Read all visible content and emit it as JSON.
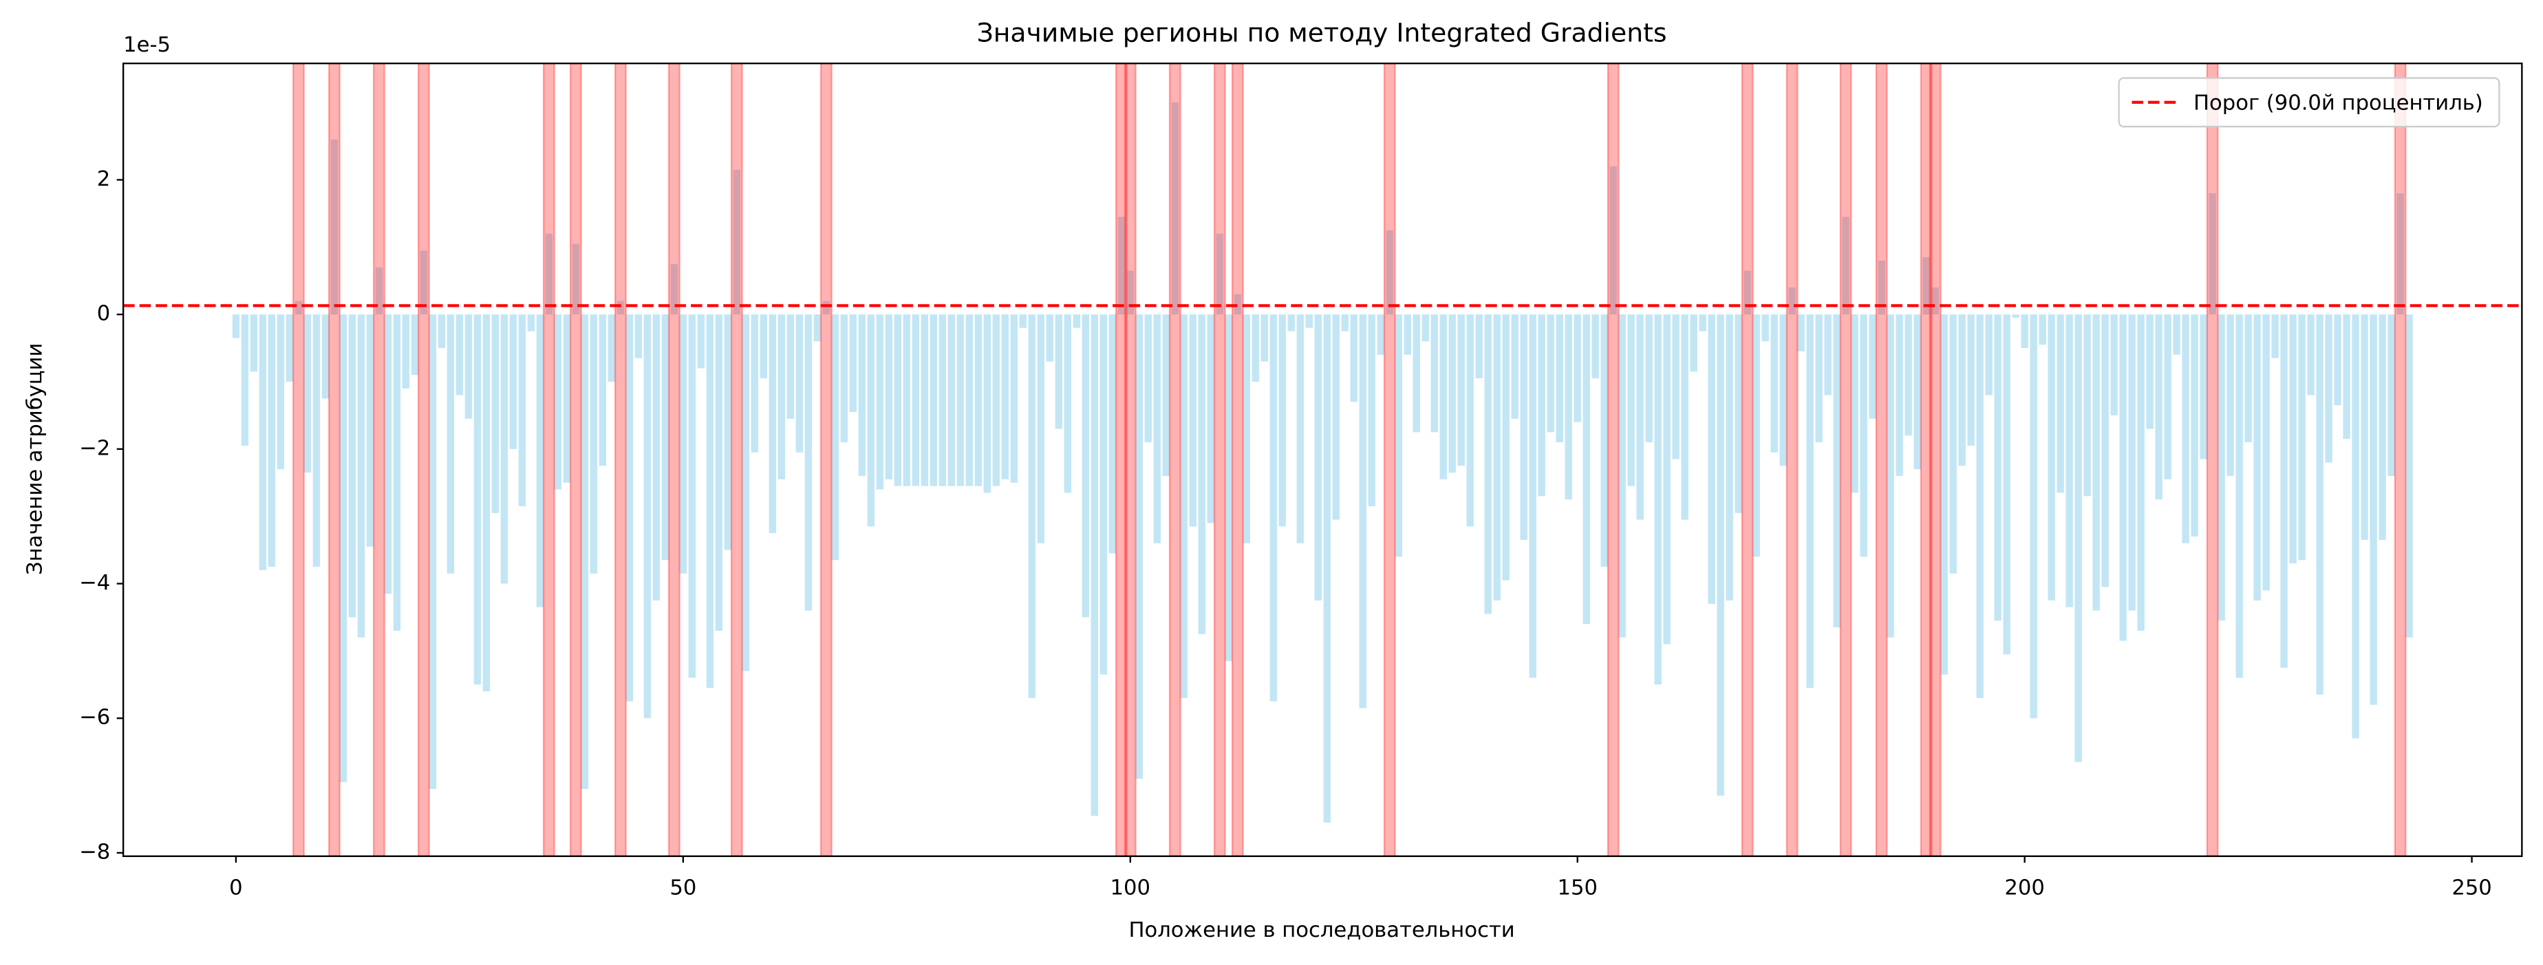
{
  "chart_data": {
    "type": "bar",
    "title": "Значимые регионы по методу Integrated Gradients",
    "xlabel": "Положение в последовательности",
    "ylabel": "Значение атрибуции",
    "y_offset_label": "1e-5",
    "color": "#87ceeb",
    "x": [
      0,
      1,
      2,
      3,
      4,
      5,
      6,
      7,
      8,
      9,
      10,
      11,
      12,
      13,
      14,
      15,
      16,
      17,
      18,
      19,
      20,
      21,
      22,
      23,
      24,
      25,
      26,
      27,
      28,
      29,
      30,
      31,
      32,
      33,
      34,
      35,
      36,
      37,
      38,
      39,
      40,
      41,
      42,
      43,
      44,
      45,
      46,
      47,
      48,
      49,
      50,
      51,
      52,
      53,
      54,
      55,
      56,
      57,
      58,
      59,
      60,
      61,
      62,
      63,
      64,
      65,
      66,
      67,
      68,
      69,
      70,
      71,
      72,
      73,
      74,
      75,
      76,
      77,
      78,
      79,
      80,
      81,
      82,
      83,
      84,
      85,
      86,
      87,
      88,
      89,
      90,
      91,
      92,
      93,
      94,
      95,
      96,
      97,
      98,
      99,
      100,
      101,
      102,
      103,
      104,
      105,
      106,
      107,
      108,
      109,
      110,
      111,
      112,
      113,
      114,
      115,
      116,
      117,
      118,
      119,
      120,
      121,
      122,
      123,
      124,
      125,
      126,
      127,
      128,
      129,
      130,
      131,
      132,
      133,
      134,
      135,
      136,
      137,
      138,
      139,
      140,
      141,
      142,
      143,
      144,
      145,
      146,
      147,
      148,
      149,
      150,
      151,
      152,
      153,
      154,
      155,
      156,
      157,
      158,
      159,
      160,
      161,
      162,
      163,
      164,
      165,
      166,
      167,
      168,
      169,
      170,
      171,
      172,
      173,
      174,
      175,
      176,
      177,
      178,
      179,
      180,
      181,
      182,
      183,
      184,
      185,
      186,
      187,
      188,
      189,
      190,
      191,
      192,
      193,
      194,
      195,
      196,
      197,
      198,
      199,
      200,
      201,
      202,
      203,
      204,
      205,
      206,
      207,
      208,
      209,
      210,
      211,
      212,
      213,
      214,
      215,
      216,
      217,
      218,
      219,
      220,
      221,
      222,
      223,
      224,
      225,
      226,
      227,
      228,
      229,
      230,
      231,
      232,
      233,
      234,
      235,
      236,
      237,
      238,
      239,
      240,
      241,
      242,
      243
    ],
    "values": [
      -0.35,
      -1.95,
      -0.85,
      -3.8,
      -3.75,
      -2.3,
      -1.0,
      0.2,
      -2.35,
      -3.75,
      -1.25,
      2.6,
      -6.95,
      -4.5,
      -4.8,
      -3.45,
      0.7,
      -4.15,
      -4.7,
      -1.1,
      -0.9,
      0.95,
      -7.05,
      -0.5,
      -3.85,
      -1.2,
      -1.55,
      -5.5,
      -5.6,
      -2.95,
      -4.0,
      -2.0,
      -2.85,
      -0.25,
      -4.35,
      1.2,
      -2.6,
      -2.5,
      1.05,
      -7.05,
      -3.85,
      -2.25,
      -1.0,
      0.2,
      -5.75,
      -0.65,
      -6.0,
      -4.25,
      -3.65,
      0.75,
      -3.85,
      -5.4,
      -0.8,
      -5.55,
      -4.7,
      -3.5,
      2.15,
      -5.3,
      -2.05,
      -0.95,
      -3.25,
      -2.45,
      -1.55,
      -2.05,
      -4.4,
      -0.4,
      0.2,
      -3.65,
      -1.9,
      -1.45,
      -2.4,
      -3.15,
      -2.6,
      -2.45,
      -2.55,
      -2.55,
      -2.55,
      -2.55,
      -2.55,
      -2.55,
      -2.55,
      -2.55,
      -2.55,
      -2.55,
      -2.65,
      -2.55,
      -2.45,
      -2.5,
      -0.2,
      -5.7,
      -3.4,
      -0.7,
      -1.7,
      -2.65,
      -0.2,
      -4.5,
      -7.45,
      -5.35,
      -3.55,
      1.45,
      0.65,
      -6.9,
      -1.9,
      -3.4,
      -2.4,
      3.15,
      -5.7,
      -3.15,
      -4.75,
      -3.1,
      1.2,
      -5.15,
      0.3,
      -3.4,
      -1.0,
      -0.7,
      -5.75,
      -3.15,
      -0.25,
      -3.4,
      -0.2,
      -4.25,
      -7.55,
      -3.05,
      -0.25,
      -1.3,
      -5.85,
      -2.85,
      -0.6,
      1.25,
      -3.6,
      -0.6,
      -1.75,
      -0.4,
      -1.75,
      -2.45,
      -2.35,
      -2.25,
      -3.15,
      -0.95,
      -4.45,
      -4.25,
      -3.95,
      -1.55,
      -3.35,
      -5.4,
      -2.7,
      -1.75,
      -1.9,
      -2.75,
      -1.6,
      -4.6,
      -0.95,
      -3.75,
      2.2,
      -4.8,
      -2.55,
      -3.05,
      -1.9,
      -5.5,
      -4.9,
      -2.15,
      -3.05,
      -0.85,
      -0.25,
      -4.3,
      -7.15,
      -4.25,
      -2.95,
      0.65,
      -3.6,
      -0.4,
      -2.05,
      -2.25,
      0.4,
      -0.55,
      -5.55,
      -1.9,
      -1.2,
      -4.65,
      1.45,
      -2.65,
      -3.6,
      -1.55,
      0.8,
      -4.8,
      -2.4,
      -1.8,
      -2.3,
      0.85,
      0.4,
      -5.35,
      -3.85,
      -2.25,
      -1.95,
      -5.7,
      -1.2,
      -4.55,
      -5.05,
      -0.05,
      -0.5,
      -6.0,
      -0.45,
      -4.25,
      -2.65,
      -4.35,
      -6.65,
      -2.7,
      -4.4,
      -4.05,
      -1.5,
      -4.85,
      -4.4,
      -4.7,
      -1.7,
      -2.75,
      -2.45,
      -0.6,
      -3.4,
      -3.3,
      -2.15,
      1.8,
      -4.55,
      -2.4,
      -5.4,
      -1.9,
      -4.25,
      -4.1,
      -0.65,
      -5.25,
      -3.7,
      -3.65,
      -1.2,
      -5.65,
      -2.2,
      -1.35,
      -1.85,
      -6.3,
      -3.35,
      -5.8,
      -3.35,
      -2.4,
      1.8,
      -4.8
    ],
    "highlight_positions": [
      7,
      11,
      16,
      21,
      35,
      38,
      43,
      49,
      56,
      66,
      99,
      100,
      105,
      110,
      112,
      129,
      154,
      169,
      174,
      180,
      184,
      189,
      190,
      221,
      242
    ],
    "highlight_color": "#ff0000",
    "threshold": 0.13,
    "threshold_label": "Порог (90.0й процентиль)",
    "threshold_color": "#ff0000",
    "legend": "upper right",
    "xlim": [
      -12.6,
      255.6
    ],
    "ylim": [
      -8.05,
      3.73
    ],
    "xticks": [
      0,
      50,
      100,
      150,
      200,
      250
    ],
    "yticks": [
      {
        "value": -8,
        "label": "−8"
      },
      {
        "value": -6,
        "label": "−6"
      },
      {
        "value": -4,
        "label": "−4"
      },
      {
        "value": -2,
        "label": "−2"
      },
      0,
      2
    ]
  }
}
